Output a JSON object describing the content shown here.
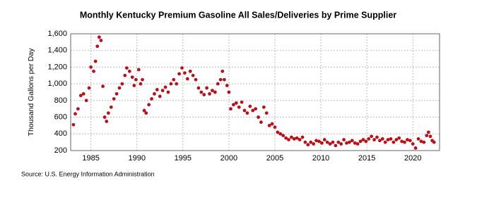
{
  "chart_data": {
    "type": "scatter",
    "title": "Monthly Kentucky Premium Gasoline All Sales/Deliveries by Prime Supplier",
    "y_label": "Thousand Gallons per Day",
    "source": "Source: U.S. Energy Information Administration",
    "color": "#b5121b",
    "grid": true,
    "xlim": [
      1982.8,
      2022.9
    ],
    "ylim": [
      200,
      1600
    ],
    "xticks": [
      1985,
      1990,
      1995,
      2000,
      2005,
      2010,
      2015,
      2020
    ],
    "yticks": [
      200,
      400,
      600,
      800,
      {
        "value": 1000,
        "label": "1,000"
      },
      {
        "value": 1200,
        "label": "1,200"
      },
      {
        "value": 1400,
        "label": "1,400"
      },
      {
        "value": 1600,
        "label": "1,600"
      }
    ],
    "x": [
      1983.1,
      1983.3,
      1983.6,
      1983.9,
      1984.2,
      1984.5,
      1984.8,
      1985.0,
      1985.3,
      1985.5,
      1985.7,
      1985.9,
      1986.1,
      1986.3,
      1986.5,
      1986.7,
      1986.9,
      1987.2,
      1987.5,
      1987.8,
      1988.1,
      1988.4,
      1988.7,
      1988.9,
      1989.2,
      1989.5,
      1989.7,
      1989.9,
      1990.2,
      1990.4,
      1990.6,
      1990.8,
      1991.0,
      1991.3,
      1991.6,
      1991.9,
      1992.2,
      1992.5,
      1992.8,
      1993.1,
      1993.4,
      1993.7,
      1994.0,
      1994.3,
      1994.6,
      1994.9,
      1995.2,
      1995.5,
      1995.8,
      1996.1,
      1996.4,
      1996.7,
      1997.0,
      1997.3,
      1997.6,
      1997.9,
      1998.2,
      1998.5,
      1998.8,
      1999.1,
      1999.3,
      1999.5,
      1999.8,
      2000.0,
      2000.2,
      2000.5,
      2000.8,
      2001.1,
      2001.4,
      2001.7,
      2002.0,
      2002.3,
      2002.6,
      2002.9,
      2003.2,
      2003.5,
      2003.8,
      2004.1,
      2004.4,
      2004.7,
      2005.0,
      2005.3,
      2005.6,
      2005.9,
      2006.2,
      2006.5,
      2006.8,
      2007.1,
      2007.4,
      2007.7,
      2008.0,
      2008.3,
      2008.6,
      2008.9,
      2009.2,
      2009.5,
      2009.8,
      2010.1,
      2010.4,
      2010.7,
      2011.0,
      2011.3,
      2011.6,
      2011.9,
      2012.2,
      2012.5,
      2012.8,
      2013.1,
      2013.4,
      2013.7,
      2014.0,
      2014.3,
      2014.6,
      2014.9,
      2015.2,
      2015.5,
      2015.8,
      2016.1,
      2016.4,
      2016.7,
      2017.0,
      2017.3,
      2017.6,
      2017.9,
      2018.2,
      2018.5,
      2018.8,
      2019.1,
      2019.4,
      2019.7,
      2020.0,
      2020.3,
      2020.6,
      2020.9,
      2021.2,
      2021.5,
      2021.7,
      2021.9,
      2022.1,
      2022.3
    ],
    "values": [
      510,
      640,
      700,
      860,
      880,
      800,
      950,
      1200,
      1150,
      1270,
      1450,
      1560,
      1520,
      970,
      600,
      550,
      650,
      720,
      820,
      880,
      950,
      1000,
      1100,
      1190,
      1150,
      1080,
      980,
      1050,
      1170,
      1000,
      1050,
      680,
      650,
      750,
      820,
      880,
      930,
      850,
      920,
      960,
      900,
      1000,
      1050,
      1000,
      1120,
      1190,
      1130,
      1060,
      1150,
      1100,
      1050,
      950,
      900,
      870,
      950,
      880,
      920,
      900,
      1000,
      1050,
      1150,
      1050,
      980,
      900,
      700,
      750,
      770,
      720,
      780,
      680,
      650,
      730,
      680,
      700,
      600,
      540,
      720,
      650,
      500,
      520,
      480,
      420,
      400,
      380,
      350,
      330,
      360,
      340,
      350,
      330,
      360,
      300,
      270,
      300,
      280,
      320,
      310,
      290,
      330,
      300,
      280,
      300,
      260,
      300,
      280,
      330,
      290,
      300,
      320,
      290,
      280,
      310,
      330,
      310,
      340,
      370,
      330,
      360,
      320,
      340,
      300,
      330,
      340,
      300,
      330,
      350,
      310,
      300,
      330,
      320,
      280,
      230,
      340,
      310,
      300,
      380,
      420,
      370,
      320,
      300
    ]
  }
}
